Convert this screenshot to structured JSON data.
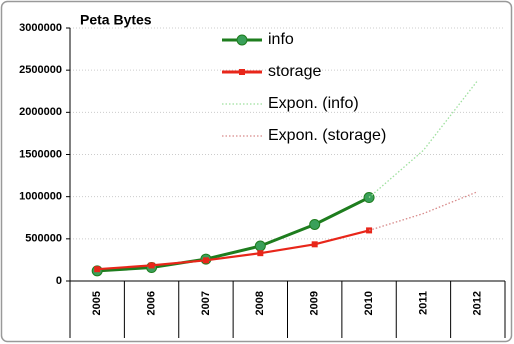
{
  "chart_data": {
    "type": "line",
    "title": "Peta Bytes",
    "categories": [
      "2005",
      "2006",
      "2007",
      "2008",
      "2009",
      "2010",
      "2011",
      "2012"
    ],
    "series": [
      {
        "name": "info",
        "color": "#1e7d1e",
        "style": "solid",
        "marker": "circle",
        "values": [
          120000,
          160000,
          260000,
          415000,
          670000,
          990000,
          null,
          null
        ]
      },
      {
        "name": "storage",
        "color": "#e8261a",
        "style": "solid",
        "marker": "square",
        "values": [
          140000,
          185000,
          245000,
          330000,
          435000,
          600000,
          null,
          null
        ]
      },
      {
        "name": "Expon. (info)",
        "color": "#9ee09e",
        "style": "dotted",
        "marker": "none",
        "values": [
          null,
          null,
          null,
          null,
          null,
          990000,
          1550000,
          2380000
        ]
      },
      {
        "name": "Expon. (storage)",
        "color": "#d88a8a",
        "style": "dotted",
        "marker": "none",
        "values": [
          null,
          null,
          null,
          null,
          null,
          600000,
          800000,
          1060000
        ]
      }
    ],
    "ylim": [
      0,
      3000000
    ],
    "yticks": [
      0,
      500000,
      1000000,
      1500000,
      2000000,
      2500000,
      3000000
    ],
    "grid": true
  }
}
